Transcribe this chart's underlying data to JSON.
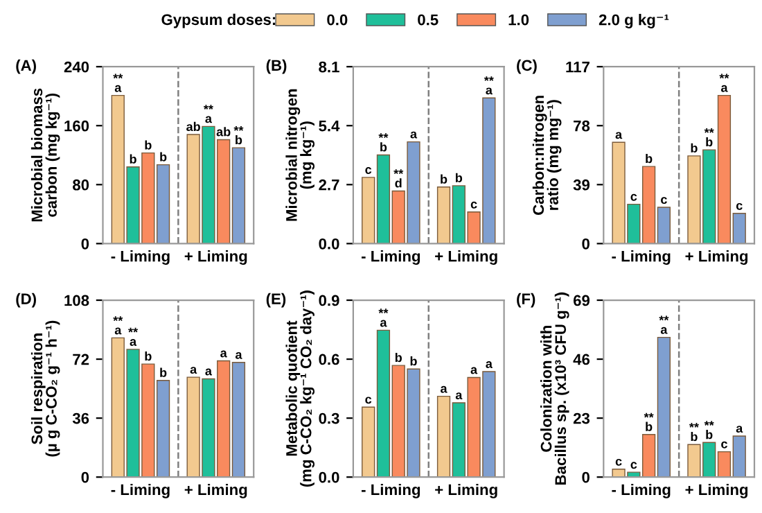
{
  "chart_data": [
    {
      "type": "bar",
      "title": "(A)",
      "ylabel": "Microbial biomass\ncarbon (mg kg⁻¹)",
      "categories": [
        "- Liming",
        "+ Liming"
      ],
      "legend": "top",
      "legend_title": "Gypsum doses:",
      "ylim": [
        0,
        240
      ],
      "yticks": [
        0,
        80,
        160,
        240
      ],
      "series": [
        {
          "name": "0.0",
          "color": "#f2c98f",
          "values": [
            201,
            148
          ],
          "value_labels": [
            "**\na",
            "ab"
          ]
        },
        {
          "name": "0.5",
          "color": "#1fbf9a",
          "values": [
            104,
            159
          ],
          "value_labels": [
            "b",
            "**\na"
          ]
        },
        {
          "name": "1.0",
          "color": "#f98a5e",
          "values": [
            123,
            141
          ],
          "value_labels": [
            "b",
            "ab"
          ]
        },
        {
          "name": "2.0 g kg⁻¹",
          "color": "#7f9fd0",
          "values": [
            107,
            130
          ],
          "value_labels": [
            "b",
            "**\nb"
          ]
        }
      ]
    },
    {
      "type": "bar",
      "title": "(B)",
      "ylabel": "Microbial nitrogen\n(mg kg⁻¹)",
      "categories": [
        "- Liming",
        "+ Liming"
      ],
      "ylim": [
        0,
        8.1
      ],
      "yticks": [
        {
          "value": 0,
          "label": "0.0"
        },
        2.7,
        5.4,
        8.1
      ],
      "series": [
        {
          "color": "#f2c98f",
          "values": [
            3.03,
            2.59
          ],
          "value_labels": [
            "c",
            "b"
          ]
        },
        {
          "color": "#1fbf9a",
          "values": [
            4.06,
            2.65
          ],
          "value_labels": [
            "**\nb",
            "b"
          ]
        },
        {
          "color": "#f98a5e",
          "values": [
            2.41,
            1.45
          ],
          "value_labels": [
            "**\nd",
            "c"
          ]
        },
        {
          "color": "#7f9fd0",
          "values": [
            4.66,
            6.67
          ],
          "value_labels": [
            "a",
            "**\na"
          ]
        }
      ]
    },
    {
      "type": "bar",
      "title": "(C)",
      "ylabel": "Carbon:nitrogen\nratio (mg mg⁻¹)",
      "categories": [
        "- Liming",
        "+ Liming"
      ],
      "ylim": [
        0,
        117
      ],
      "yticks": [
        0,
        39,
        78,
        117
      ],
      "series": [
        {
          "color": "#f2c98f",
          "values": [
            67,
            58
          ],
          "value_labels": [
            "a",
            "b"
          ]
        },
        {
          "color": "#1fbf9a",
          "values": [
            26,
            62
          ],
          "value_labels": [
            "c",
            "**\nb"
          ]
        },
        {
          "color": "#f98a5e",
          "values": [
            51,
            98
          ],
          "value_labels": [
            "b",
            "**\na"
          ]
        },
        {
          "color": "#7f9fd0",
          "values": [
            24,
            20
          ],
          "value_labels": [
            "c",
            "c"
          ]
        }
      ]
    },
    {
      "type": "bar",
      "title": "(D)",
      "ylabel": "Soil respiration\n(µ g C-CO₂ g⁻¹ h⁻¹)",
      "categories": [
        "- Liming",
        "+ Liming"
      ],
      "ylim": [
        0,
        108
      ],
      "yticks": [
        0,
        36,
        72,
        108
      ],
      "series": [
        {
          "color": "#f2c98f",
          "values": [
            85,
            61
          ],
          "value_labels": [
            "**\na",
            "a"
          ]
        },
        {
          "color": "#1fbf9a",
          "values": [
            78,
            60
          ],
          "value_labels": [
            "**\na",
            "a"
          ]
        },
        {
          "color": "#f98a5e",
          "values": [
            69,
            71
          ],
          "value_labels": [
            "b",
            "a"
          ]
        },
        {
          "color": "#7f9fd0",
          "values": [
            59,
            70
          ],
          "value_labels": [
            "b",
            "a"
          ]
        }
      ]
    },
    {
      "type": "bar",
      "title": "(E)",
      "ylabel": "Metabolic quotient\n(mg C-CO₂ kg⁻¹ CO₂ day⁻¹)",
      "categories": [
        "- Liming",
        "+ Liming"
      ],
      "ylim": [
        0,
        0.9
      ],
      "yticks": [
        {
          "value": 0,
          "label": "0.0"
        },
        0.3,
        0.6,
        0.9
      ],
      "series": [
        {
          "color": "#f2c98f",
          "values": [
            0.356,
            0.411
          ],
          "value_labels": [
            "c",
            "a"
          ]
        },
        {
          "color": "#1fbf9a",
          "values": [
            0.747,
            0.378
          ],
          "value_labels": [
            "**\na",
            "a"
          ]
        },
        {
          "color": "#f98a5e",
          "values": [
            0.568,
            0.507
          ],
          "value_labels": [
            "b",
            "a"
          ]
        },
        {
          "color": "#7f9fd0",
          "values": [
            0.55,
            0.537
          ],
          "value_labels": [
            "b",
            "a"
          ]
        }
      ]
    },
    {
      "type": "bar",
      "title": "(F)",
      "ylabel": "Colonization with\nBacillus sp. (x10³ CFU g⁻¹)",
      "categories": [
        "- Liming",
        "+ Liming"
      ],
      "ylim": [
        0,
        69
      ],
      "yticks": [
        0,
        23,
        46,
        69
      ],
      "series": [
        {
          "color": "#f2c98f",
          "values": [
            3.1,
            12.7
          ],
          "value_labels": [
            "c",
            "**\nb"
          ]
        },
        {
          "color": "#1fbf9a",
          "values": [
            1.9,
            13.5
          ],
          "value_labels": [
            "c",
            "**\nb"
          ]
        },
        {
          "color": "#f98a5e",
          "values": [
            16.6,
            9.9
          ],
          "value_labels": [
            "**\nb",
            "c"
          ]
        },
        {
          "color": "#7f9fd0",
          "values": [
            54.5,
            16.0
          ],
          "value_labels": [
            "**\na",
            "a"
          ]
        }
      ]
    }
  ]
}
